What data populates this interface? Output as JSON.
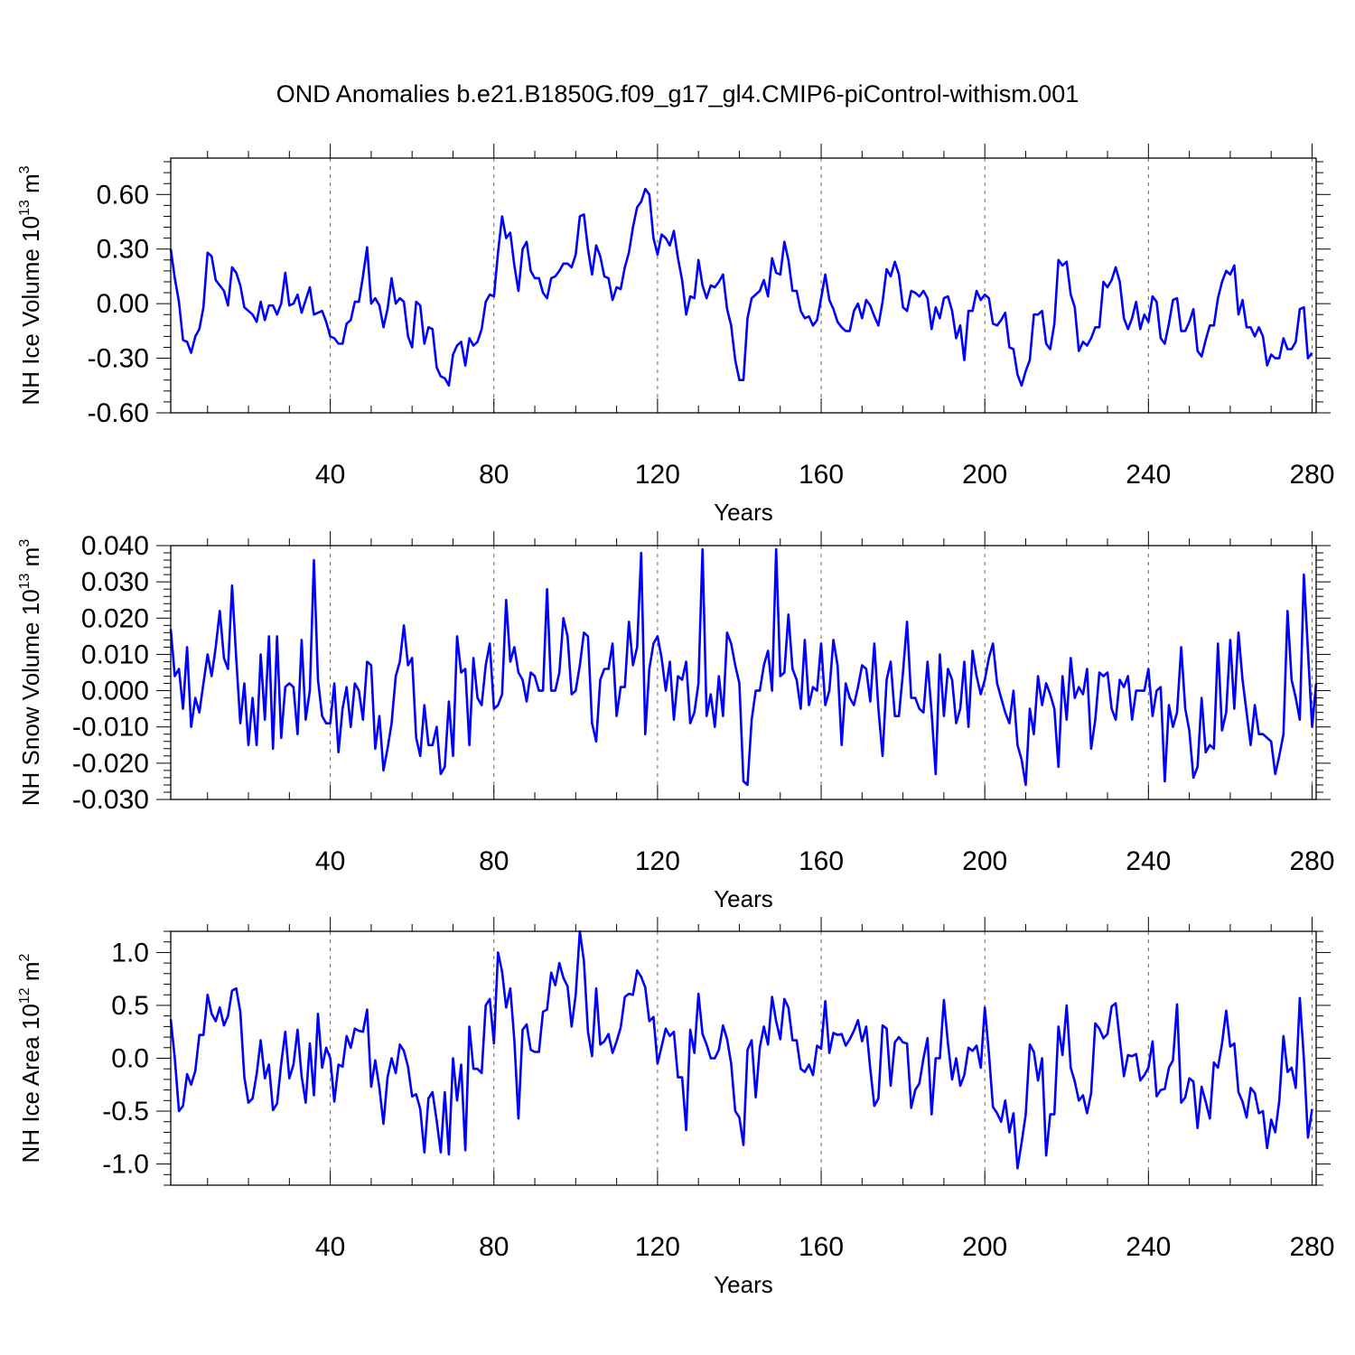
{
  "title": "OND Anomalies b.e21.B1850G.f09_g17_gl4.CMIP6-piControl-withism.001",
  "chart_data": [
    {
      "type": "line",
      "xlabel": "Years",
      "ylabel_main": "NH Ice Volume 10",
      "ylabel_exp": "13",
      "ylabel_unit": " m",
      "ylabel_unit_exp": "3",
      "xlim": [
        1,
        281
      ],
      "ylim": [
        -0.6,
        0.8
      ],
      "xticks": [
        40,
        80,
        120,
        160,
        200,
        240,
        280
      ],
      "xtick_labels": [
        "40",
        "80",
        "120",
        "160",
        "200",
        "240",
        "280"
      ],
      "yticks": [
        -0.6,
        -0.3,
        0.0,
        0.3,
        0.6
      ],
      "ytick_labels": [
        "-0.60",
        "-0.30",
        "0.00",
        "0.30",
        "0.60"
      ],
      "grid": "dashed vertical at labeled x ticks",
      "color": "#0000ff",
      "series": [
        {
          "values": [
            0.3,
            0.14,
            0.01,
            -0.2,
            -0.21,
            -0.27,
            -0.18,
            -0.14,
            -0.02,
            0.28,
            0.26,
            0.13,
            0.1,
            0.07,
            -0.01,
            0.2,
            0.17,
            0.1,
            -0.02,
            -0.04,
            -0.06,
            -0.1,
            0.01,
            -0.09,
            -0.01,
            -0.01,
            -0.06,
            0.0,
            0.17,
            -0.01,
            0.0,
            0.05,
            -0.05,
            0.02,
            0.09,
            -0.06,
            -0.05,
            -0.04,
            -0.1,
            -0.18,
            -0.19,
            -0.22,
            -0.22,
            -0.11,
            -0.09,
            0.01,
            0.01,
            0.15,
            0.31,
            0.0,
            0.03,
            -0.01,
            -0.13,
            -0.03,
            0.14,
            0.0,
            0.03,
            0.01,
            -0.18,
            -0.24,
            0.01,
            -0.01,
            -0.22,
            -0.13,
            -0.14,
            -0.35,
            -0.4,
            -0.41,
            -0.45,
            -0.28,
            -0.23,
            -0.21,
            -0.34,
            -0.19,
            -0.23,
            -0.21,
            -0.14,
            0.01,
            0.05,
            0.04,
            0.28,
            0.48,
            0.36,
            0.39,
            0.21,
            0.07,
            0.3,
            0.34,
            0.18,
            0.14,
            0.14,
            0.06,
            0.03,
            0.14,
            0.15,
            0.18,
            0.22,
            0.22,
            0.2,
            0.27,
            0.48,
            0.49,
            0.3,
            0.16,
            0.32,
            0.26,
            0.15,
            0.14,
            0.02,
            0.09,
            0.08,
            0.2,
            0.28,
            0.42,
            0.53,
            0.56,
            0.63,
            0.6,
            0.36,
            0.27,
            0.38,
            0.36,
            0.32,
            0.4,
            0.25,
            0.13,
            -0.06,
            0.04,
            0.03,
            0.24,
            0.1,
            0.03,
            0.1,
            0.09,
            0.12,
            0.16,
            -0.03,
            -0.12,
            -0.31,
            -0.42,
            -0.42,
            -0.08,
            0.03,
            0.05,
            0.07,
            0.13,
            0.04,
            0.25,
            0.17,
            0.16,
            0.34,
            0.24,
            0.07,
            0.07,
            -0.04,
            -0.08,
            -0.07,
            -0.12,
            -0.09,
            0.03,
            0.16,
            0.02,
            -0.03,
            -0.1,
            -0.13,
            -0.15,
            -0.15,
            -0.04,
            0.0,
            -0.08,
            0.02,
            -0.01,
            -0.07,
            -0.12,
            0.01,
            0.19,
            0.15,
            0.23,
            0.16,
            -0.02,
            -0.04,
            0.07,
            0.06,
            0.04,
            0.07,
            0.03,
            -0.14,
            -0.02,
            -0.08,
            0.03,
            0.04,
            -0.04,
            -0.19,
            -0.12,
            -0.31,
            -0.04,
            -0.04,
            0.07,
            0.02,
            0.05,
            0.03,
            -0.11,
            -0.12,
            -0.09,
            -0.05,
            -0.24,
            -0.25,
            -0.39,
            -0.45,
            -0.37,
            -0.31,
            -0.06,
            -0.06,
            -0.04,
            -0.22,
            -0.25,
            -0.11,
            0.24,
            0.21,
            0.23,
            0.05,
            -0.02,
            -0.26,
            -0.21,
            -0.23,
            -0.19,
            -0.13,
            -0.13,
            0.12,
            0.09,
            0.13,
            0.2,
            0.12,
            -0.08,
            -0.14,
            -0.08,
            0.01,
            -0.14,
            -0.06,
            -0.1,
            0.04,
            0.01,
            -0.19,
            -0.22,
            -0.11,
            0.02,
            0.03,
            -0.15,
            -0.15,
            -0.1,
            -0.03,
            -0.26,
            -0.29,
            -0.2,
            -0.12,
            -0.12,
            0.03,
            0.12,
            0.18,
            0.16,
            0.21,
            -0.06,
            0.02,
            -0.13,
            -0.13,
            -0.18,
            -0.13,
            -0.18,
            -0.34,
            -0.28,
            -0.3,
            -0.3,
            -0.19,
            -0.25,
            -0.25,
            -0.21,
            -0.03,
            -0.02,
            -0.3,
            -0.27
          ]
        }
      ]
    },
    {
      "type": "line",
      "xlabel": "Years",
      "ylabel_main": "NH Snow Volume 10",
      "ylabel_exp": "13",
      "ylabel_unit": " m",
      "ylabel_unit_exp": "3",
      "xlim": [
        1,
        281
      ],
      "ylim": [
        -0.03,
        0.04
      ],
      "xticks": [
        40,
        80,
        120,
        160,
        200,
        240,
        280
      ],
      "xtick_labels": [
        "40",
        "80",
        "120",
        "160",
        "200",
        "240",
        "280"
      ],
      "yticks": [
        -0.03,
        -0.02,
        -0.01,
        0.0,
        0.01,
        0.02,
        0.03,
        0.04
      ],
      "ytick_labels": [
        "-0.030",
        "-0.020",
        "-0.010",
        "0.000",
        "0.010",
        "0.020",
        "0.030",
        "0.040"
      ],
      "grid": "dashed vertical at labeled x ticks",
      "color": "#0000ff",
      "series": [
        {
          "values": [
            0.017,
            0.004,
            0.006,
            -0.005,
            0.012,
            -0.01,
            -0.002,
            -0.006,
            0.002,
            0.01,
            0.004,
            0.012,
            0.022,
            0.009,
            0.006,
            0.029,
            0.009,
            -0.009,
            0.002,
            -0.015,
            -0.002,
            -0.015,
            0.01,
            -0.008,
            0.015,
            -0.016,
            0.015,
            -0.013,
            0.001,
            0.002,
            0.001,
            -0.012,
            0.014,
            -0.008,
            0.0,
            0.036,
            0.003,
            -0.007,
            -0.009,
            -0.009,
            0.002,
            -0.017,
            -0.005,
            0.001,
            -0.01,
            0.002,
            0.0,
            -0.008,
            0.008,
            0.007,
            -0.016,
            -0.007,
            -0.022,
            -0.016,
            -0.009,
            0.004,
            0.008,
            0.018,
            0.007,
            0.009,
            -0.013,
            -0.018,
            -0.004,
            -0.015,
            -0.015,
            -0.01,
            -0.023,
            -0.021,
            -0.003,
            -0.018,
            0.015,
            0.005,
            0.006,
            -0.015,
            0.009,
            -0.002,
            -0.004,
            0.007,
            0.013,
            -0.005,
            -0.004,
            -0.001,
            0.025,
            0.008,
            0.012,
            0.005,
            0.003,
            -0.003,
            0.005,
            0.004,
            0.0,
            0.0,
            0.028,
            0.0,
            0.0,
            0.005,
            0.02,
            0.015,
            -0.001,
            0.0,
            0.007,
            0.016,
            0.015,
            -0.009,
            -0.014,
            0.003,
            0.006,
            0.006,
            0.013,
            -0.007,
            0.001,
            0.001,
            0.019,
            0.007,
            0.012,
            0.038,
            -0.012,
            0.006,
            0.013,
            0.015,
            0.009,
            0.0,
            0.008,
            -0.008,
            0.004,
            0.003,
            0.008,
            -0.009,
            -0.006,
            0.002,
            0.039,
            -0.007,
            -0.001,
            -0.01,
            0.004,
            -0.007,
            0.016,
            0.013,
            0.007,
            0.002,
            -0.025,
            -0.026,
            -0.008,
            0.0,
            0.0,
            0.007,
            0.011,
            0.0,
            0.039,
            0.004,
            0.005,
            0.021,
            0.006,
            0.003,
            -0.005,
            0.014,
            -0.004,
            0.001,
            0.0,
            0.013,
            -0.004,
            0.0,
            0.014,
            0.007,
            -0.015,
            0.002,
            -0.002,
            -0.004,
            0.001,
            0.007,
            0.006,
            -0.003,
            0.013,
            -0.005,
            -0.018,
            0.003,
            0.008,
            -0.007,
            -0.007,
            0.005,
            0.019,
            -0.002,
            -0.002,
            -0.005,
            -0.006,
            0.008,
            -0.006,
            -0.023,
            0.01,
            -0.007,
            0.006,
            0.003,
            -0.009,
            -0.005,
            0.008,
            -0.01,
            0.011,
            0.004,
            -0.001,
            0.003,
            0.009,
            0.013,
            0.002,
            -0.002,
            -0.006,
            -0.009,
            0.0,
            -0.015,
            -0.019,
            -0.026,
            -0.005,
            -0.012,
            0.004,
            -0.004,
            0.002,
            -0.001,
            -0.005,
            -0.021,
            0.004,
            -0.008,
            0.009,
            -0.002,
            0.001,
            -0.001,
            0.006,
            -0.016,
            -0.008,
            0.005,
            0.004,
            0.005,
            -0.005,
            -0.008,
            0.003,
            0.001,
            0.004,
            -0.008,
            0.0,
            0.0,
            0.0,
            0.006,
            -0.007,
            0.0,
            0.001,
            -0.025,
            -0.004,
            -0.01,
            -0.006,
            0.012,
            -0.005,
            -0.011,
            -0.024,
            -0.021,
            -0.002,
            -0.017,
            -0.015,
            -0.016,
            0.013,
            -0.011,
            -0.006,
            0.014,
            -0.005,
            0.016,
            0.003,
            -0.006,
            -0.015,
            -0.004,
            -0.012,
            -0.012,
            -0.013,
            -0.014,
            -0.023,
            -0.018,
            -0.012,
            0.022,
            0.003,
            -0.002,
            -0.008,
            0.032,
            0.011,
            -0.01,
            0.002
          ]
        }
      ]
    },
    {
      "type": "line",
      "xlabel": "Years",
      "ylabel_main": "NH Ice Area 10",
      "ylabel_exp": "12",
      "ylabel_unit": " m",
      "ylabel_unit_exp": "2",
      "xlim": [
        1,
        281
      ],
      "ylim": [
        -1.2,
        1.2
      ],
      "xticks": [
        40,
        80,
        120,
        160,
        200,
        240,
        280
      ],
      "xtick_labels": [
        "40",
        "80",
        "120",
        "160",
        "200",
        "240",
        "280"
      ],
      "yticks": [
        -1.0,
        -0.5,
        0.0,
        0.5,
        1.0
      ],
      "ytick_labels": [
        "-1.0",
        "-0.5",
        "0.0",
        "0.5",
        "1.0"
      ],
      "grid": "dashed vertical at labeled x ticks",
      "color": "#0000ff",
      "series": [
        {
          "values": [
            0.37,
            0.0,
            -0.5,
            -0.45,
            -0.15,
            -0.25,
            -0.12,
            0.22,
            0.22,
            0.6,
            0.42,
            0.35,
            0.48,
            0.31,
            0.4,
            0.64,
            0.66,
            0.44,
            -0.18,
            -0.42,
            -0.38,
            -0.15,
            0.17,
            -0.19,
            -0.06,
            -0.49,
            -0.43,
            -0.05,
            0.25,
            -0.19,
            -0.06,
            0.27,
            -0.17,
            -0.42,
            0.14,
            -0.35,
            0.42,
            -0.09,
            0.1,
            0.0,
            -0.41,
            -0.06,
            -0.08,
            0.21,
            0.1,
            0.28,
            0.26,
            0.25,
            0.46,
            -0.27,
            -0.02,
            -0.28,
            -0.62,
            -0.18,
            0.0,
            -0.14,
            0.13,
            0.07,
            -0.08,
            -0.36,
            -0.34,
            -0.48,
            -0.89,
            -0.38,
            -0.32,
            -0.59,
            -0.89,
            -0.32,
            -0.91,
            0.0,
            -0.4,
            -0.06,
            -0.87,
            0.3,
            -0.1,
            -0.1,
            -0.14,
            0.5,
            0.56,
            0.14,
            1.0,
            0.82,
            0.48,
            0.66,
            0.17,
            -0.57,
            0.27,
            0.32,
            0.08,
            0.06,
            0.06,
            0.44,
            0.46,
            0.81,
            0.69,
            0.9,
            0.76,
            0.68,
            0.3,
            0.6,
            1.2,
            0.92,
            0.25,
            0.02,
            0.66,
            0.13,
            0.16,
            0.23,
            0.05,
            0.16,
            0.29,
            0.58,
            0.61,
            0.6,
            0.83,
            0.77,
            0.67,
            0.35,
            0.39,
            -0.05,
            0.11,
            0.28,
            0.21,
            0.25,
            -0.18,
            -0.18,
            -0.68,
            0.27,
            0.05,
            0.61,
            0.23,
            0.13,
            0.0,
            0.0,
            0.08,
            0.31,
            0.18,
            -0.05,
            -0.5,
            -0.56,
            -0.82,
            0.08,
            0.17,
            -0.37,
            0.1,
            0.3,
            0.13,
            0.58,
            0.35,
            0.18,
            0.56,
            0.48,
            0.17,
            0.17,
            -0.1,
            -0.13,
            -0.06,
            -0.16,
            0.12,
            0.09,
            0.54,
            0.05,
            0.24,
            0.22,
            0.23,
            0.12,
            0.18,
            0.26,
            0.36,
            0.16,
            0.3,
            -0.1,
            -0.45,
            -0.38,
            0.31,
            0.28,
            -0.26,
            0.15,
            0.2,
            0.15,
            0.14,
            -0.47,
            -0.3,
            -0.24,
            0.0,
            0.19,
            -0.53,
            0.0,
            0.0,
            0.55,
            0.14,
            -0.2,
            0.0,
            -0.26,
            -0.16,
            0.1,
            0.07,
            0.12,
            -0.09,
            0.48,
            0.05,
            -0.46,
            -0.52,
            -0.6,
            -0.4,
            -0.7,
            -0.52,
            -1.04,
            -0.8,
            -0.53,
            0.13,
            0.06,
            -0.21,
            0.0,
            -0.92,
            -0.53,
            -0.53,
            0.3,
            0.03,
            0.5,
            -0.09,
            -0.22,
            -0.4,
            -0.35,
            -0.52,
            -0.33,
            0.33,
            0.28,
            0.19,
            0.23,
            0.49,
            0.52,
            0.17,
            -0.17,
            0.03,
            0.02,
            0.04,
            -0.21,
            -0.16,
            -0.09,
            0.16,
            -0.36,
            -0.3,
            -0.29,
            -0.09,
            -0.02,
            0.51,
            -0.42,
            -0.37,
            -0.19,
            -0.22,
            -0.66,
            -0.27,
            -0.41,
            -0.57,
            -0.04,
            -0.09,
            0.14,
            0.45,
            0.11,
            0.14,
            -0.32,
            -0.41,
            -0.56,
            -0.28,
            -0.33,
            -0.52,
            -0.5,
            -0.85,
            -0.58,
            -0.7,
            -0.4,
            0.21,
            -0.13,
            -0.09,
            -0.28,
            0.57,
            0.0,
            -0.75,
            -0.48
          ]
        }
      ]
    }
  ]
}
